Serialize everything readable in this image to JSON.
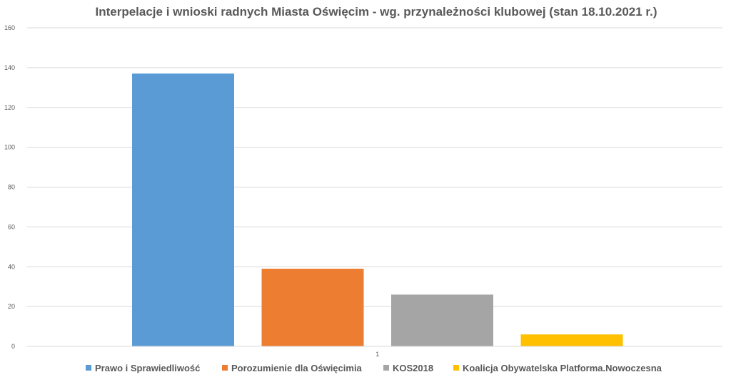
{
  "chart_data": {
    "type": "bar",
    "title": "Interpelacje i wnioski radnych Miasta Oświęcim - wg. przynależności klubowej (stan 18.10.2021 r.)",
    "xlabel": "",
    "ylabel": "",
    "categories": [
      "1"
    ],
    "series": [
      {
        "name": "Prawo i Sprawiedliwość",
        "values": [
          137
        ],
        "color": "#5b9bd5"
      },
      {
        "name": "Porozumienie dla Oświęcimia",
        "values": [
          39
        ],
        "color": "#ed7d31"
      },
      {
        "name": "KOS2018",
        "values": [
          26
        ],
        "color": "#a5a5a5"
      },
      {
        "name": "Koalicja Obywatelska Platforma.Nowoczesna",
        "values": [
          6
        ],
        "color": "#ffc000"
      }
    ],
    "ylim": [
      0,
      160
    ],
    "yticks": [
      "0",
      "20",
      "40",
      "60",
      "80",
      "100",
      "120",
      "140",
      "160"
    ],
    "grid": true,
    "legend_position": "bottom"
  }
}
